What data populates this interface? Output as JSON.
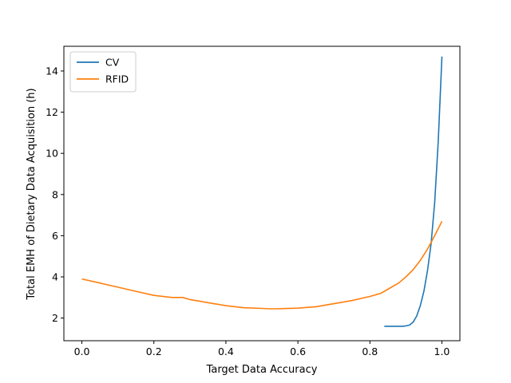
{
  "chart_data": {
    "type": "line",
    "xlabel": "Target Data Accuracy",
    "ylabel": "Total EMH of Dietary Data Acquisition (h)",
    "xlim": [
      -0.05,
      1.05
    ],
    "ylim": [
      0.9,
      15.2
    ],
    "xticks": [
      0.0,
      0.2,
      0.4,
      0.6,
      0.8,
      1.0
    ],
    "xtick_labels": [
      "0.0",
      "0.2",
      "0.4",
      "0.6",
      "0.8",
      "1.0"
    ],
    "yticks": [
      2,
      4,
      6,
      8,
      10,
      12,
      14
    ],
    "ytick_labels": [
      "2",
      "4",
      "6",
      "8",
      "10",
      "12",
      "14"
    ],
    "grid": false,
    "legend_position": "top-left",
    "series": [
      {
        "name": "CV",
        "color": "#1f77b4",
        "x": [
          0.84,
          0.86,
          0.88,
          0.89,
          0.9,
          0.91,
          0.92,
          0.93,
          0.94,
          0.95,
          0.96,
          0.97,
          0.98,
          0.99,
          1.0
        ],
        "y": [
          1.6,
          1.6,
          1.6,
          1.6,
          1.62,
          1.66,
          1.8,
          2.1,
          2.6,
          3.3,
          4.3,
          5.6,
          7.6,
          10.6,
          14.7
        ]
      },
      {
        "name": "RFID",
        "color": "#ff7f0e",
        "x": [
          0.0,
          0.05,
          0.1,
          0.15,
          0.2,
          0.25,
          0.28,
          0.3,
          0.35,
          0.4,
          0.45,
          0.5,
          0.52,
          0.54,
          0.56,
          0.6,
          0.65,
          0.7,
          0.75,
          0.8,
          0.83,
          0.85,
          0.88,
          0.9,
          0.92,
          0.94,
          0.96,
          0.98,
          1.0
        ],
        "y": [
          3.9,
          3.7,
          3.5,
          3.3,
          3.1,
          3.0,
          3.0,
          2.9,
          2.75,
          2.6,
          2.5,
          2.47,
          2.45,
          2.45,
          2.46,
          2.48,
          2.55,
          2.7,
          2.85,
          3.05,
          3.2,
          3.4,
          3.7,
          4.0,
          4.35,
          4.8,
          5.35,
          6.0,
          6.7
        ]
      }
    ]
  }
}
